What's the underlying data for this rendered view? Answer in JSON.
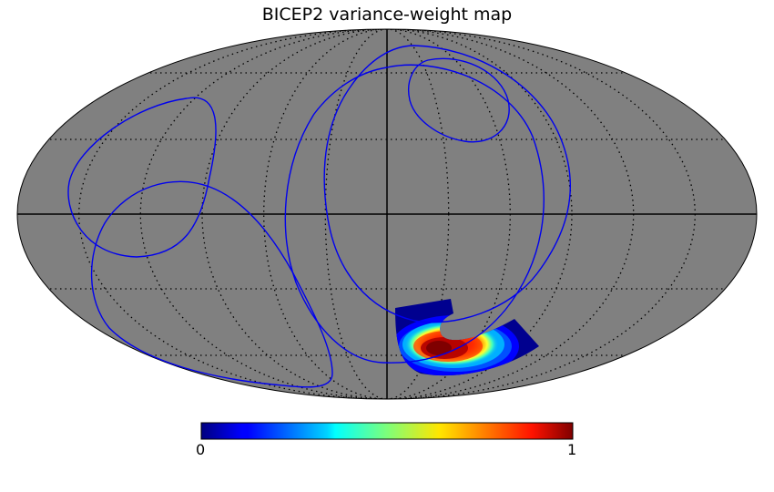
{
  "title": "BICEP2 variance-weight map",
  "projection": "mollweide",
  "colors": {
    "sky_fill": "#808080",
    "graticule": "#000000",
    "curves": "#0000ee",
    "background": "#ffffff"
  },
  "colorbar": {
    "colormap": "jet",
    "min_label": "0",
    "max_label": "1"
  }
}
